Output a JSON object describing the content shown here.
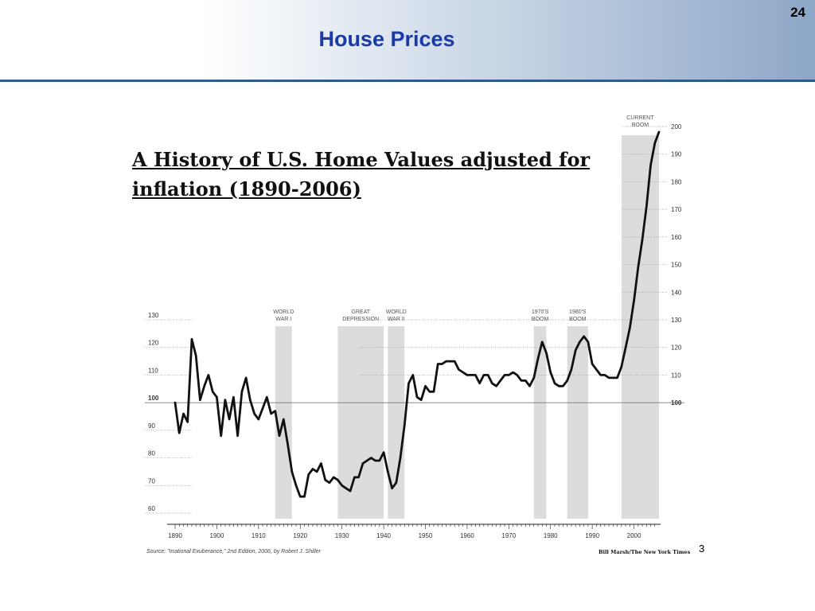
{
  "slide": {
    "title": "House Prices",
    "number": "24",
    "page_ref": "3"
  },
  "source": "Source: \"Irrational Exuberance,\" 2nd Edition, 2006, by Robert J. Shiller",
  "credit": "Bill Marsh/The New York Times",
  "chart_data": {
    "type": "line",
    "title": "A History of U.S. Home Values adjusted for inflation (1890-2006)",
    "xlabel": "",
    "ylabel": "",
    "xlim": [
      1890,
      2006
    ],
    "ylim": [
      60,
      200
    ],
    "x_ticks": [
      1890,
      1900,
      1910,
      1920,
      1930,
      1940,
      1950,
      1960,
      1970,
      1980,
      1990,
      2000
    ],
    "y_ticks_left": [
      60,
      70,
      80,
      90,
      100,
      110,
      120,
      130
    ],
    "y_ticks_right": [
      100,
      110,
      120,
      130,
      140,
      150,
      160,
      170,
      180,
      190,
      200
    ],
    "baseline": 100,
    "grid": "dotted horizontal",
    "shaded_periods": [
      {
        "label": [
          "WORLD",
          "WAR I"
        ],
        "start": 1914,
        "end": 1918
      },
      {
        "label": [
          "GREAT",
          "DEPRESSION"
        ],
        "start": 1929,
        "end": 1940
      },
      {
        "label": [
          "WORLD",
          "WAR II"
        ],
        "start": 1941,
        "end": 1945
      },
      {
        "label": [
          "1970'S",
          "BOOM"
        ],
        "start": 1976,
        "end": 1979
      },
      {
        "label": [
          "1980'S",
          "BOOM"
        ],
        "start": 1984,
        "end": 1989
      },
      {
        "label": [
          "CURRENT",
          "BOOM"
        ],
        "start": 1997,
        "end": 2006
      }
    ],
    "series": [
      {
        "x": [
          1890,
          1891,
          1892,
          1893,
          1894,
          1895,
          1896,
          1897,
          1898,
          1899,
          1900,
          1901,
          1902,
          1903,
          1904,
          1905,
          1906,
          1907,
          1908,
          1909,
          1910,
          1911,
          1912,
          1913,
          1914,
          1915,
          1916,
          1917,
          1918,
          1919,
          1920,
          1921,
          1922,
          1923,
          1924,
          1925,
          1926,
          1927,
          1928,
          1929,
          1930,
          1931,
          1932,
          1933,
          1934,
          1935,
          1936,
          1937,
          1938,
          1939,
          1940,
          1941,
          1942,
          1943,
          1944,
          1945,
          1946,
          1947,
          1948,
          1949,
          1950,
          1951,
          1952,
          1953,
          1954,
          1955,
          1956,
          1957,
          1958,
          1959,
          1960,
          1961,
          1962,
          1963,
          1964,
          1965,
          1966,
          1967,
          1968,
          1969,
          1970,
          1971,
          1972,
          1973,
          1974,
          1975,
          1976,
          1977,
          1978,
          1979,
          1980,
          1981,
          1982,
          1983,
          1984,
          1985,
          1986,
          1987,
          1988,
          1989,
          1990,
          1991,
          1992,
          1993,
          1994,
          1995,
          1996,
          1997,
          1998,
          1999,
          2000,
          2001,
          2002,
          2003,
          2004,
          2005,
          2006
        ],
        "values": [
          100,
          89,
          96,
          93,
          123,
          117,
          101,
          106,
          110,
          104,
          102,
          88,
          101,
          94,
          102,
          88,
          104,
          109,
          101,
          96,
          94,
          98,
          102,
          96,
          97,
          88,
          94,
          85,
          75,
          70,
          66,
          66,
          74,
          76,
          75,
          78,
          72,
          71,
          73,
          72,
          70,
          69,
          68,
          73,
          73,
          78,
          79,
          80,
          79,
          79,
          82,
          75,
          69,
          71,
          80,
          92,
          107,
          110,
          102,
          101,
          106,
          104,
          104,
          114,
          114,
          115,
          115,
          115,
          112,
          111,
          110,
          110,
          110,
          107,
          110,
          110,
          107,
          106,
          108,
          110,
          110,
          111,
          110,
          108,
          108,
          106,
          109,
          116,
          122,
          118,
          111,
          107,
          106,
          106,
          108,
          112,
          119,
          122,
          124,
          122,
          114,
          112,
          110,
          110,
          109,
          109,
          109,
          113,
          120,
          127,
          137,
          149,
          159,
          171,
          186,
          194,
          198
        ]
      }
    ]
  }
}
